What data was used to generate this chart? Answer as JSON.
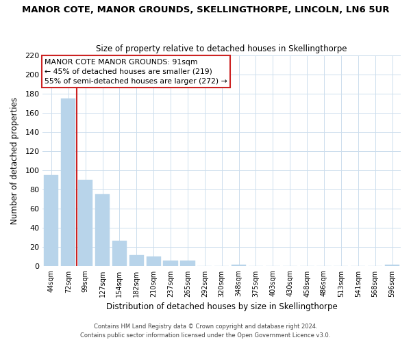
{
  "title": "MANOR COTE, MANOR GROUNDS, SKELLINGTHORPE, LINCOLN, LN6 5UR",
  "subtitle": "Size of property relative to detached houses in Skellingthorpe",
  "xlabel": "Distribution of detached houses by size in Skellingthorpe",
  "ylabel": "Number of detached properties",
  "bar_labels": [
    "44sqm",
    "72sqm",
    "99sqm",
    "127sqm",
    "154sqm",
    "182sqm",
    "210sqm",
    "237sqm",
    "265sqm",
    "292sqm",
    "320sqm",
    "348sqm",
    "375sqm",
    "403sqm",
    "430sqm",
    "458sqm",
    "486sqm",
    "513sqm",
    "541sqm",
    "568sqm",
    "596sqm"
  ],
  "bar_values": [
    95,
    175,
    90,
    75,
    27,
    12,
    10,
    6,
    6,
    0,
    0,
    2,
    0,
    0,
    0,
    0,
    0,
    0,
    0,
    0,
    2
  ],
  "bar_color": "#b8d4ea",
  "highlight_color": "#cc2222",
  "annotation_title": "MANOR COTE MANOR GROUNDS: 91sqm",
  "annotation_line1": "← 45% of detached houses are smaller (219)",
  "annotation_line2": "55% of semi-detached houses are larger (272) →",
  "ylim": [
    0,
    220
  ],
  "yticks": [
    0,
    20,
    40,
    60,
    80,
    100,
    120,
    140,
    160,
    180,
    200,
    220
  ],
  "footer1": "Contains HM Land Registry data © Crown copyright and database right 2024.",
  "footer2": "Contains public sector information licensed under the Open Government Licence v3.0.",
  "bg_color": "#ffffff",
  "grid_color": "#ccdded"
}
